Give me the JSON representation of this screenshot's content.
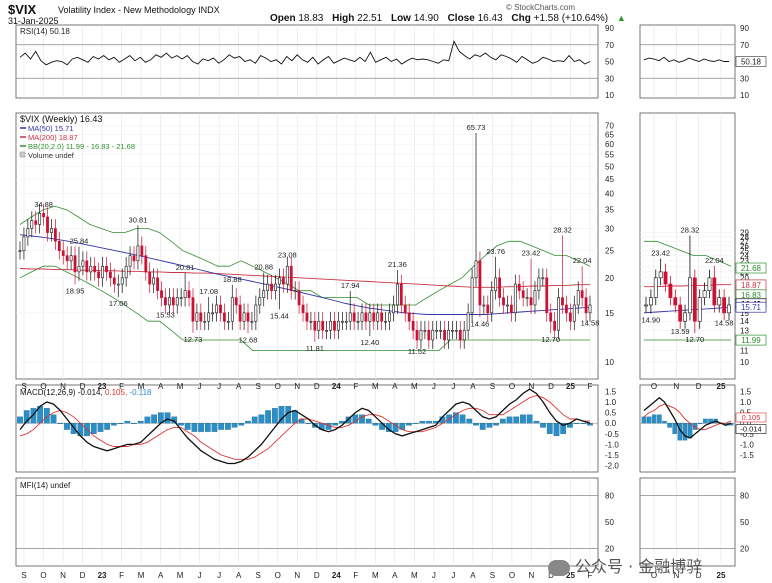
{
  "header": {
    "ticker": "$VIX",
    "description": "Volatility Index - New Methodology INDX",
    "date": "31-Jan-2025",
    "open_label": "Open",
    "open": "18.83",
    "high_label": "High",
    "high": "22.51",
    "low_label": "Low",
    "low": "14.90",
    "close_label": "Close",
    "close": "16.43",
    "chg_label": "Chg",
    "chg": "+1.58 (+10.64%)",
    "up_arrow": "▲",
    "source": "© StockCharts.com"
  },
  "watermark": "公众号 · 金融博骍",
  "colors": {
    "up": "#111111",
    "down": "#cc1133",
    "ma50": "#3333aa",
    "ma200": "#cc3344",
    "bb": "#2f8f2f",
    "macd_hist": "#2a8fc6",
    "macd": "#111111",
    "signal": "#dd3333",
    "rsi": "#111111"
  },
  "chart_data": [
    {
      "type": "line",
      "panel": "rsi",
      "legend": "RSI(14) 50.18",
      "y_ticks": [
        "90",
        "70",
        "50",
        "30",
        "10"
      ],
      "ylim": [
        10,
        90
      ],
      "reference_lines": [
        70,
        30
      ],
      "last_value": "50.18",
      "values": [
        55,
        60,
        53,
        62,
        51,
        46,
        49,
        51,
        50,
        46,
        53,
        55,
        52,
        49,
        56,
        53,
        57,
        52,
        55,
        49,
        53,
        57,
        51,
        55,
        49,
        52,
        58,
        55,
        60,
        54,
        57,
        53,
        57,
        50,
        47,
        53,
        51,
        54,
        48,
        52,
        58,
        54,
        56,
        50,
        52,
        48,
        57,
        54,
        50,
        52,
        47,
        56,
        51,
        58,
        52,
        49,
        55,
        47,
        52,
        56,
        48,
        51,
        54,
        52,
        50,
        55,
        50,
        61,
        49,
        52,
        55,
        50,
        53,
        47,
        51,
        54,
        52,
        53,
        52,
        50,
        48,
        52,
        51,
        74,
        62,
        57,
        53,
        58,
        56,
        60,
        55,
        52,
        58,
        56,
        53,
        49,
        56,
        52,
        48,
        50,
        55,
        53,
        50,
        51,
        50,
        57,
        50,
        52,
        47,
        50
      ]
    },
    {
      "type": "candlestick",
      "panel": "price",
      "legend": [
        "$VIX (Weekly) 16.43",
        "MA(50) 15.71",
        "MA(200) 18.87",
        "BB(20,2.0) 11.99 - 16.83 - 21.68",
        "Volume undef"
      ],
      "y_ticks": [
        "70",
        "65",
        "60",
        "55",
        "50",
        "45",
        "40",
        "35",
        "30",
        "25",
        "20",
        "15",
        "10"
      ],
      "y_scale": "log",
      "ylim": [
        9,
        75
      ],
      "x_ticks": [
        "S",
        "O",
        "N",
        "D",
        "23",
        "F",
        "M",
        "A",
        "M",
        "J",
        "J",
        "A",
        "S",
        "O",
        "N",
        "D",
        "24",
        "F",
        "M",
        "A",
        "M",
        "J",
        "J",
        "A",
        "S",
        "O",
        "N",
        "D",
        "25",
        "F"
      ],
      "annotations": [
        {
          "text": "34.88",
          "index": 6,
          "value": 34.88,
          "pos": "above"
        },
        {
          "text": "25.84",
          "index": 15,
          "value": 25.84,
          "pos": "above"
        },
        {
          "text": "18.95",
          "index": 14,
          "value": 18.95,
          "pos": "below"
        },
        {
          "text": "30.81",
          "index": 30,
          "value": 30.81,
          "pos": "above"
        },
        {
          "text": "17.06",
          "index": 25,
          "value": 17.06,
          "pos": "below"
        },
        {
          "text": "20.81",
          "index": 42,
          "value": 20.81,
          "pos": "above"
        },
        {
          "text": "15.53",
          "index": 37,
          "value": 15.53,
          "pos": "below"
        },
        {
          "text": "17.08",
          "index": 48,
          "value": 17.08,
          "pos": "above"
        },
        {
          "text": "18.88",
          "index": 54,
          "value": 18.88,
          "pos": "above"
        },
        {
          "text": "12.73",
          "index": 44,
          "value": 12.73,
          "pos": "below"
        },
        {
          "text": "20.88",
          "index": 62,
          "value": 20.88,
          "pos": "above"
        },
        {
          "text": "23.08",
          "index": 68,
          "value": 23.08,
          "pos": "above"
        },
        {
          "text": "15.44",
          "index": 66,
          "value": 15.44,
          "pos": "below"
        },
        {
          "text": "12.68",
          "index": 58,
          "value": 12.68,
          "pos": "below"
        },
        {
          "text": "17.94",
          "index": 84,
          "value": 17.94,
          "pos": "above"
        },
        {
          "text": "11.81",
          "index": 75,
          "value": 11.81,
          "pos": "below"
        },
        {
          "text": "21.36",
          "index": 96,
          "value": 21.36,
          "pos": "above"
        },
        {
          "text": "12.40",
          "index": 89,
          "value": 12.4,
          "pos": "below"
        },
        {
          "text": "11.52",
          "index": 101,
          "value": 11.52,
          "pos": "below"
        },
        {
          "text": "65.73",
          "index": 116,
          "value": 65.73,
          "pos": "above"
        },
        {
          "text": "23.76",
          "index": 121,
          "value": 23.76,
          "pos": "above"
        },
        {
          "text": "14.46",
          "index": 117,
          "value": 14.46,
          "pos": "below"
        },
        {
          "text": "23.42",
          "index": 130,
          "value": 23.42,
          "pos": "above"
        },
        {
          "text": "28.32",
          "index": 138,
          "value": 28.32,
          "pos": "above"
        },
        {
          "text": "12.70",
          "index": 135,
          "value": 12.7,
          "pos": "below"
        },
        {
          "text": "22.04",
          "index": 143,
          "value": 22.04,
          "pos": "above"
        },
        {
          "text": "14.58",
          "index": 145,
          "value": 14.58,
          "pos": "below"
        }
      ],
      "closes": [
        25,
        28,
        30,
        32,
        31,
        34,
        33,
        29,
        30,
        27,
        25,
        24,
        23,
        24,
        21,
        22,
        23,
        21,
        22,
        21,
        20,
        22,
        21,
        20,
        19,
        19,
        20,
        22,
        24,
        23,
        26,
        24,
        21,
        19,
        20,
        18,
        17,
        16,
        17,
        16,
        17,
        17,
        18,
        17,
        14,
        15,
        14,
        14,
        15,
        15,
        16,
        15,
        14,
        14,
        17,
        16,
        14,
        15,
        14,
        14,
        16,
        17,
        18,
        19,
        18,
        19,
        20,
        19,
        22,
        18,
        18,
        16,
        15,
        14,
        14,
        13,
        14,
        13,
        13,
        14,
        13,
        14,
        14,
        14,
        15,
        14,
        14,
        15,
        14,
        15,
        14,
        15,
        14,
        14,
        15,
        16,
        19,
        16,
        15,
        14,
        13,
        12,
        13,
        13,
        12,
        13,
        13,
        13,
        12,
        13,
        13,
        13,
        12,
        13,
        15,
        20,
        23,
        16,
        16,
        15,
        18,
        20,
        17,
        16,
        16,
        15,
        19,
        18,
        17,
        17,
        16,
        18,
        20,
        20,
        15,
        14,
        13,
        17,
        16,
        15,
        14,
        16,
        18,
        17,
        15,
        16
      ],
      "series": [
        {
          "name": "MA(50)",
          "values": [
            28.5,
            28.2,
            27.9,
            27.5,
            27.1,
            26.6,
            26.1,
            25.6,
            25.1,
            24.6,
            24.1,
            23.6,
            23.1,
            22.6,
            22.1,
            21.6,
            21.1,
            20.6,
            20.2,
            19.8,
            19.4,
            19.0,
            18.6,
            18.2,
            17.8,
            17.4,
            17.0,
            16.6,
            16.2,
            15.9,
            15.6,
            15.4,
            15.2,
            15.0,
            14.9,
            14.8,
            14.8,
            14.8,
            14.8,
            14.8,
            14.8,
            14.9,
            15.0,
            15.1,
            15.2,
            15.3,
            15.4,
            15.5,
            15.6,
            15.7
          ]
        },
        {
          "name": "MA(200)",
          "values": [
            21.6,
            21.5,
            21.5,
            21.4,
            21.4,
            21.3,
            21.3,
            21.2,
            21.2,
            21.1,
            21.1,
            21.0,
            21.0,
            20.9,
            20.9,
            20.8,
            20.8,
            20.7,
            20.6,
            20.5,
            20.4,
            20.3,
            20.2,
            20.1,
            20.0,
            19.9,
            19.8,
            19.7,
            19.6,
            19.5,
            19.4,
            19.3,
            19.2,
            19.1,
            19.0,
            18.9,
            18.8,
            18.7,
            18.6,
            18.5,
            18.5,
            18.5,
            18.6,
            18.6,
            18.7,
            18.7,
            18.8,
            18.8,
            18.9,
            18.9
          ]
        },
        {
          "name": "BB upper",
          "values": [
            31,
            33,
            35,
            36,
            35,
            33,
            31,
            30,
            29,
            29,
            30,
            30,
            29,
            27,
            25,
            24,
            23,
            22,
            22,
            23,
            22,
            21,
            20,
            19,
            18,
            18,
            17,
            17,
            17,
            17,
            16,
            16,
            16,
            16,
            16,
            17,
            18,
            19,
            20,
            22,
            24,
            26,
            27,
            27,
            26,
            25,
            24,
            24,
            23,
            22
          ]
        },
        {
          "name": "BB lower",
          "values": [
            20,
            21,
            22,
            22,
            21,
            20,
            19,
            18,
            17,
            16,
            15,
            14,
            14,
            13,
            12,
            12,
            12,
            12,
            12,
            12,
            11,
            11,
            11,
            11,
            11,
            11,
            11,
            11,
            11,
            11,
            11,
            11,
            11,
            11,
            11,
            11,
            11,
            12,
            12,
            12,
            12,
            12,
            12,
            12,
            12,
            12,
            12,
            12,
            12,
            12
          ]
        }
      ],
      "right_labels": {
        "bb_upper": "21.68",
        "ma200": "18.87",
        "bb_mid": "16.83",
        "close": "16.43",
        "ma50": "15.71",
        "bb_lower": "11.99"
      }
    },
    {
      "type": "line",
      "panel": "macd",
      "legend": {
        "label": "MACD(12,26,9)",
        "macd": "-0.014",
        "signal": "0.105",
        "hist": "-0.118"
      },
      "y_ticks": [
        "1.5",
        "1.0",
        "0.5",
        "0.0",
        "-0.5",
        "-1.0",
        "-1.5",
        "-2.0"
      ],
      "ylim": [
        -2.3,
        1.8
      ],
      "macd": [
        -0.3,
        0.1,
        0.4,
        0.8,
        1.0,
        0.9,
        0.6,
        0.2,
        -0.2,
        -0.6,
        -0.9,
        -1.1,
        -1.2,
        -1.3,
        -1.2,
        -1.1,
        -1.0,
        -1.0,
        -0.9,
        -0.6,
        -0.3,
        0.0,
        0.2,
        0.1,
        -0.3,
        -0.7,
        -1.0,
        -1.3,
        -1.5,
        -1.7,
        -1.8,
        -1.9,
        -1.9,
        -1.8,
        -1.6,
        -1.3,
        -1.0,
        -0.6,
        -0.2,
        0.2,
        0.5,
        0.6,
        0.4,
        0.2,
        -0.1,
        -0.3,
        -0.4,
        -0.3,
        -0.1,
        0.2,
        0.5,
        0.7,
        0.6,
        0.3,
        0.0,
        -0.3,
        -0.5,
        -0.6,
        -0.5,
        -0.4,
        -0.3,
        -0.2,
        -0.1,
        0.3,
        0.6,
        0.9,
        1.0,
        0.9,
        0.6,
        0.3,
        0.2,
        0.3,
        0.6,
        0.9,
        1.1,
        1.4,
        1.6,
        1.4,
        1.0,
        0.5,
        0.1,
        -0.1,
        0.0,
        0.2,
        0.1,
        0.0
      ],
      "signal": [
        -0.6,
        -0.5,
        -0.3,
        0.0,
        0.3,
        0.5,
        0.6,
        0.5,
        0.3,
        0.0,
        -0.3,
        -0.6,
        -0.8,
        -1.0,
        -1.1,
        -1.1,
        -1.1,
        -1.0,
        -1.0,
        -0.9,
        -0.7,
        -0.5,
        -0.3,
        -0.2,
        -0.2,
        -0.4,
        -0.6,
        -0.9,
        -1.1,
        -1.3,
        -1.5,
        -1.6,
        -1.7,
        -1.7,
        -1.7,
        -1.6,
        -1.4,
        -1.2,
        -0.9,
        -0.6,
        -0.3,
        0.0,
        0.2,
        0.2,
        0.1,
        0.0,
        -0.1,
        -0.2,
        -0.2,
        -0.1,
        0.1,
        0.3,
        0.4,
        0.4,
        0.3,
        0.1,
        -0.1,
        -0.3,
        -0.4,
        -0.4,
        -0.4,
        -0.3,
        -0.2,
        0.0,
        0.2,
        0.4,
        0.6,
        0.7,
        0.7,
        0.6,
        0.4,
        0.4,
        0.4,
        0.6,
        0.8,
        1.0,
        1.2,
        1.3,
        1.2,
        1.0,
        0.7,
        0.4,
        0.2,
        0.2,
        0.1,
        0.1
      ]
    },
    {
      "type": "line",
      "panel": "mfi",
      "legend": "MFI(14) undef",
      "y_ticks": [
        "80",
        "50",
        "20"
      ],
      "ylim": [
        0,
        100
      ],
      "reference_lines": [
        80,
        20
      ]
    }
  ],
  "right_panel": {
    "x_ticks": [
      "O",
      "N",
      "D",
      "25"
    ],
    "price_ticks": [
      "29",
      "28",
      "27",
      "26",
      "25",
      "24",
      "23",
      "22",
      "21",
      "20",
      "19",
      "18",
      "17",
      "16",
      "15",
      "14",
      "13",
      "12",
      "11",
      "10"
    ],
    "price_annotations": [
      {
        "text": "28.32",
        "index": 9,
        "value": 28.32,
        "pos": "above"
      },
      {
        "text": "23.42",
        "index": 3,
        "value": 23.42,
        "pos": "above"
      },
      {
        "text": "22.04",
        "index": 14,
        "value": 22.04,
        "pos": "above"
      },
      {
        "text": "14.90",
        "index": 1,
        "value": 14.9,
        "pos": "below"
      },
      {
        "text": "13.59",
        "index": 7,
        "value": 13.59,
        "pos": "below"
      },
      {
        "text": "12.70",
        "index": 10,
        "value": 12.7,
        "pos": "below"
      },
      {
        "text": "14.58",
        "index": 16,
        "value": 14.58,
        "pos": "below"
      }
    ],
    "closes": [
      16,
      17,
      20,
      21,
      19,
      17,
      16,
      14,
      15,
      20,
      14,
      17,
      18,
      20,
      16,
      17,
      15,
      16
    ],
    "rsi_ticks": [
      "90",
      "70",
      "50",
      "30",
      "10"
    ],
    "rsi_values": [
      52,
      54,
      53,
      51,
      55,
      50,
      52,
      49,
      51,
      54,
      52,
      50,
      53,
      51,
      50,
      52,
      50,
      50
    ],
    "macd_ticks": [
      "1.5",
      "1.0",
      "0.5",
      "0.0",
      "-0.5",
      "-1.0",
      "-1.5"
    ],
    "macd_values": [
      0.6,
      0.8,
      1.0,
      1.2,
      1.0,
      0.6,
      0.2,
      -0.3,
      -0.6,
      -0.7,
      -0.5,
      -0.3,
      -0.1,
      0.0,
      0.1,
      0.0,
      -0.1,
      0.0
    ],
    "signal_values": [
      0.3,
      0.5,
      0.6,
      0.8,
      0.9,
      0.8,
      0.7,
      0.5,
      0.2,
      0.0,
      -0.2,
      -0.3,
      -0.3,
      -0.2,
      -0.1,
      0.0,
      0.0,
      0.1
    ],
    "mfi_ticks": [
      "80",
      "50",
      "20"
    ],
    "macd_right_labels": [
      "0.105",
      "-0.014"
    ]
  }
}
